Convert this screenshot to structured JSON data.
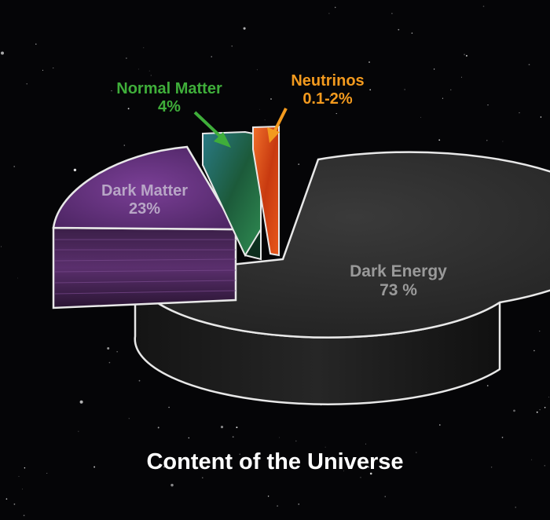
{
  "chart_data": {
    "type": "pie",
    "title": "Content of the Universe",
    "slices": [
      {
        "label": "Dark Energy",
        "value_label": "73 %",
        "value": 73,
        "color": "#262626"
      },
      {
        "label": "Dark Matter",
        "value_label": "23%",
        "value": 23,
        "color": "#5c2f78"
      },
      {
        "label": "Normal Matter",
        "value_label": "4%",
        "value": 4,
        "color": "#1f6b46"
      },
      {
        "label": "Neutrinos",
        "value_label": "0.1-2%",
        "value": 1,
        "color": "#e04a16"
      }
    ],
    "label_colors": {
      "normal_matter": "#3fae3a",
      "neutrinos": "#f39a1e",
      "dark_matter": "#b8a6c6",
      "dark_energy": "#9a9a9a"
    }
  }
}
